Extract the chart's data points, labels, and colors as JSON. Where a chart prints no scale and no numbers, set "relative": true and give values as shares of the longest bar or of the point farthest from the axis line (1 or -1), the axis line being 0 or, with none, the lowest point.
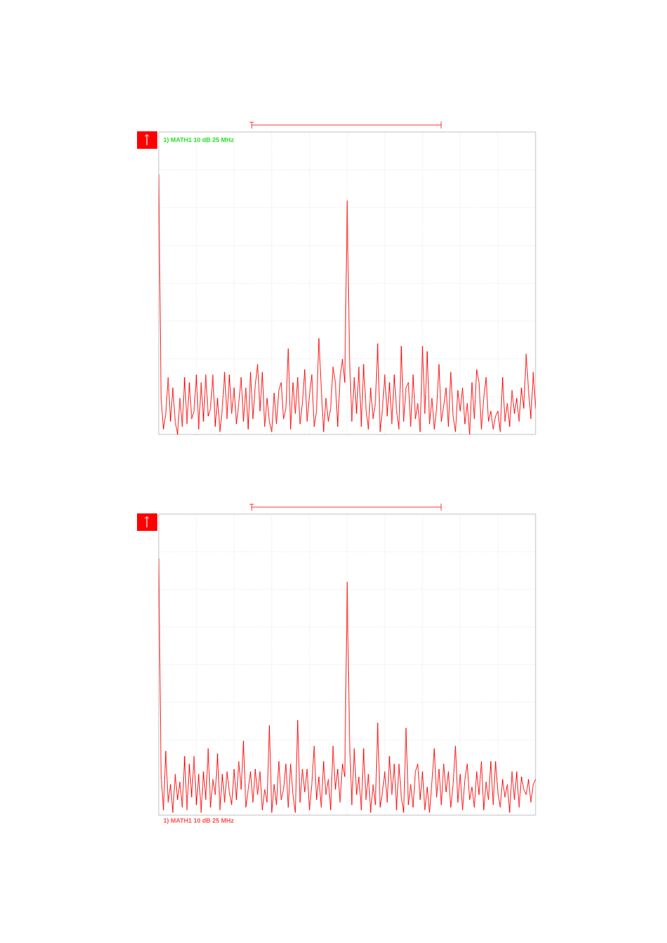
{
  "chart_data": [
    {
      "type": "line",
      "relative": true,
      "grid": true,
      "color": "#ff0000",
      "annotations": [
        "1) MATH1  10  dB   25 MHz"
      ],
      "categories": [
        null,
        null,
        null,
        null,
        null,
        null,
        null,
        null,
        null,
        null,
        null,
        null,
        null,
        null,
        null,
        null,
        null,
        null,
        null,
        null,
        null,
        null,
        null,
        null,
        null,
        null,
        null,
        null,
        null,
        null,
        null,
        null,
        null,
        null,
        null,
        null,
        null,
        null,
        null,
        null,
        null,
        null,
        null,
        null,
        null,
        null,
        null,
        null,
        null,
        null,
        null,
        null,
        null,
        null,
        null,
        null,
        null,
        null,
        null,
        null,
        null,
        null,
        null,
        null,
        null,
        null,
        null,
        null,
        null,
        null,
        null,
        null,
        null,
        null,
        null,
        null,
        null,
        null,
        null,
        null,
        null,
        null,
        null,
        null,
        null,
        null,
        null,
        null,
        null,
        null,
        null,
        null,
        null,
        null,
        null,
        null,
        null,
        null,
        null,
        null,
        null,
        null,
        null,
        null,
        null,
        null,
        null,
        null,
        null,
        null,
        null,
        null,
        null,
        null,
        null,
        null,
        null,
        null,
        null,
        null,
        null,
        null,
        null,
        null,
        null,
        null,
        null,
        null,
        null,
        null,
        null,
        null,
        null,
        null,
        null,
        null,
        null,
        null,
        null,
        null,
        null,
        null,
        null,
        null,
        null,
        null,
        null,
        null,
        null,
        null,
        null,
        null,
        null,
        null,
        null,
        null,
        null,
        null,
        null,
        null,
        null
      ],
      "values": [
        1,
        0.14,
        0.02,
        0.08,
        0.22,
        0.05,
        0.18,
        0.05,
        0.0,
        0.14,
        0.03,
        0.22,
        0.04,
        0.2,
        0.06,
        0.09,
        0.23,
        0.02,
        0.2,
        0.05,
        0.23,
        0.07,
        0.1,
        0.23,
        0.03,
        0.14,
        0.01,
        0.1,
        0.24,
        0.06,
        0.23,
        0.08,
        0.18,
        0.04,
        0.12,
        0.22,
        0.05,
        0.18,
        0.02,
        0.24,
        0.06,
        0.19,
        0.27,
        0.09,
        0.24,
        0.03,
        0.14,
        0.05,
        0.01,
        0.16,
        0.04,
        0.17,
        0.2,
        0.06,
        0.1,
        0.33,
        0.02,
        0.2,
        0.08,
        0.22,
        0.04,
        0.12,
        0.25,
        0.05,
        0.15,
        0.23,
        0.03,
        0.09,
        0.37,
        0.18,
        0.01,
        0.14,
        0.05,
        0.1,
        0.26,
        0.2,
        0.03,
        0.22,
        0.29,
        0.2,
        0.9,
        0.3,
        0.05,
        0.22,
        0.08,
        0.26,
        0.03,
        0.27,
        0.1,
        0.02,
        0.18,
        0.06,
        0.12,
        0.35,
        0.01,
        0.1,
        0.23,
        0.07,
        0.2,
        0.04,
        0.23,
        0.09,
        0.02,
        0.34,
        0.05,
        0.18,
        0.2,
        0.03,
        0.23,
        0.06,
        0.12,
        0.01,
        0.34,
        0.08,
        0.32,
        0.04,
        0.14,
        0.02,
        0.1,
        0.27,
        0.05,
        0.11,
        0.18,
        0.03,
        0.24,
        0.07,
        0.01,
        0.17,
        0.09,
        0.18,
        0.04,
        0.12,
        0.0,
        0.2,
        0.06,
        0.25,
        0.2,
        0.02,
        0.14,
        0.22,
        0.05,
        0.09,
        0.02,
        0.07,
        0.09,
        0.01,
        0.22,
        0.05,
        0.12,
        0.03,
        0.17,
        0.08,
        0.14,
        0.05,
        0.18,
        0.1,
        0.31,
        0.17,
        0.06,
        0.24,
        0.1
      ]
    },
    {
      "type": "line",
      "relative": true,
      "grid": true,
      "color": "#ff0000",
      "annotations": [
        "1) MATH1  10  dB   25 MHz"
      ],
      "categories": [
        null,
        null,
        null,
        null,
        null,
        null,
        null,
        null,
        null,
        null,
        null,
        null,
        null,
        null,
        null,
        null,
        null,
        null,
        null,
        null,
        null,
        null,
        null,
        null,
        null,
        null,
        null,
        null,
        null,
        null,
        null,
        null,
        null,
        null,
        null,
        null,
        null,
        null,
        null,
        null,
        null,
        null,
        null,
        null,
        null,
        null,
        null,
        null,
        null,
        null,
        null,
        null,
        null,
        null,
        null,
        null,
        null,
        null,
        null,
        null,
        null,
        null,
        null,
        null,
        null,
        null,
        null,
        null,
        null,
        null,
        null,
        null,
        null,
        null,
        null,
        null,
        null,
        null,
        null,
        null,
        null,
        null,
        null,
        null,
        null,
        null,
        null,
        null,
        null,
        null,
        null,
        null,
        null,
        null,
        null,
        null,
        null,
        null,
        null,
        null,
        null,
        null,
        null,
        null,
        null,
        null,
        null,
        null,
        null,
        null,
        null,
        null,
        null,
        null,
        null,
        null,
        null,
        null,
        null,
        null,
        null,
        null,
        null,
        null,
        null,
        null,
        null,
        null,
        null,
        null,
        null,
        null,
        null,
        null,
        null,
        null,
        null,
        null,
        null,
        null,
        null,
        null,
        null,
        null,
        null,
        null,
        null,
        null,
        null,
        null,
        null,
        null,
        null,
        null,
        null,
        null,
        null,
        null,
        null,
        null,
        null
      ],
      "values": [
        1,
        0.16,
        0.02,
        0.25,
        0.05,
        0.12,
        0.01,
        0.16,
        0.06,
        0.13,
        0.03,
        0.23,
        0.02,
        0.2,
        0.07,
        0.23,
        0.04,
        0.16,
        0.01,
        0.17,
        0.06,
        0.26,
        0.03,
        0.14,
        0.08,
        0.24,
        0.02,
        0.16,
        0.05,
        0.17,
        0.09,
        0.04,
        0.18,
        0.06,
        0.21,
        0.1,
        0.29,
        0.03,
        0.1,
        0.17,
        0.05,
        0.18,
        0.08,
        0.17,
        0.02,
        0.1,
        0.05,
        0.35,
        0.01,
        0.12,
        0.04,
        0.21,
        0.06,
        0.1,
        0.2,
        0.03,
        0.2,
        0.08,
        0.01,
        0.37,
        0.05,
        0.18,
        0.09,
        0.18,
        0.02,
        0.12,
        0.27,
        0.06,
        0.15,
        0.03,
        0.21,
        0.08,
        0.14,
        0.02,
        0.27,
        0.1,
        0.18,
        0.05,
        0.2,
        0.15,
        0.91,
        0.3,
        0.04,
        0.26,
        0.08,
        0.15,
        0.02,
        0.26,
        0.06,
        0.16,
        0.01,
        0.12,
        0.04,
        0.36,
        0.03,
        0.09,
        0.17,
        0.05,
        0.23,
        0.08,
        0.2,
        0.02,
        0.2,
        0.07,
        0.01,
        0.34,
        0.04,
        0.12,
        0.03,
        0.17,
        0.2,
        0.06,
        0.17,
        0.02,
        0.11,
        0.01,
        0.13,
        0.26,
        0.07,
        0.18,
        0.04,
        0.2,
        0.09,
        0.17,
        0.03,
        0.12,
        0.27,
        0.05,
        0.16,
        0.02,
        0.14,
        0.2,
        0.06,
        0.11,
        0.03,
        0.17,
        0.08,
        0.21,
        0.02,
        0.13,
        0.06,
        0.21,
        0.04,
        0.21,
        0.09,
        0.03,
        0.14,
        0.07,
        0.12,
        0.01,
        0.17,
        0.06,
        0.17,
        0.03,
        0.15,
        0.1,
        0.08,
        0.14,
        0.05,
        0.12,
        0.14
      ]
    }
  ]
}
